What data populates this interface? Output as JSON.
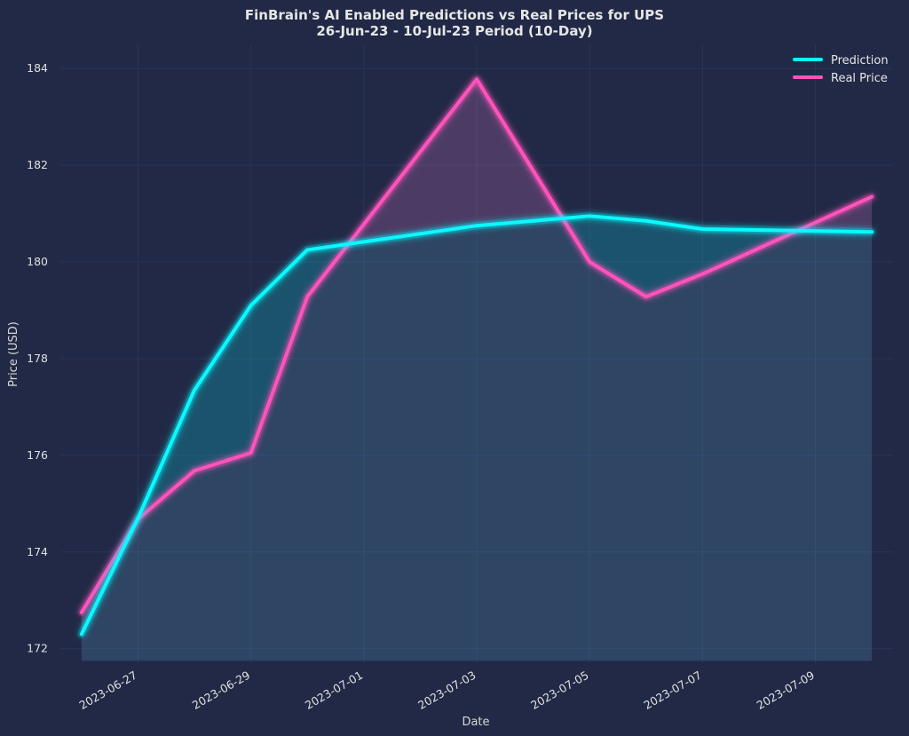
{
  "chart_data": {
    "type": "line",
    "title_line1": "FinBrain's AI Enabled Predictions vs Real Prices for UPS",
    "title_line2": "26-Jun-23 - 10-Jul-23 Period (10-Day)",
    "xlabel": "Date",
    "ylabel": "Price (USD)",
    "x": [
      "2023-06-26",
      "2023-06-27",
      "2023-06-28",
      "2023-06-29",
      "2023-06-30",
      "2023-07-03",
      "2023-07-05",
      "2023-07-06",
      "2023-07-07",
      "2023-07-10"
    ],
    "x_ticks": [
      "2023-06-27",
      "2023-06-29",
      "2023-07-01",
      "2023-07-03",
      "2023-07-05",
      "2023-07-07",
      "2023-07-09"
    ],
    "y_ticks": [
      172,
      174,
      176,
      178,
      180,
      182,
      184
    ],
    "xlim": [
      "2023-06-25T15:00",
      "2023-07-10T09:00"
    ],
    "ylim": [
      171.7,
      184.5
    ],
    "fill_base": 171.75,
    "grid": true,
    "legend_position": "top-right",
    "series": [
      {
        "name": "Prediction",
        "color": "#08F7FE",
        "values": [
          172.3,
          174.7,
          177.35,
          179.1,
          180.25,
          180.75,
          180.95,
          180.85,
          180.68,
          180.62
        ]
      },
      {
        "name": "Real Price",
        "color": "#FE53BB",
        "values": [
          172.75,
          174.68,
          175.68,
          176.05,
          179.28,
          183.78,
          180.0,
          179.28,
          179.75,
          181.35
        ]
      }
    ]
  }
}
